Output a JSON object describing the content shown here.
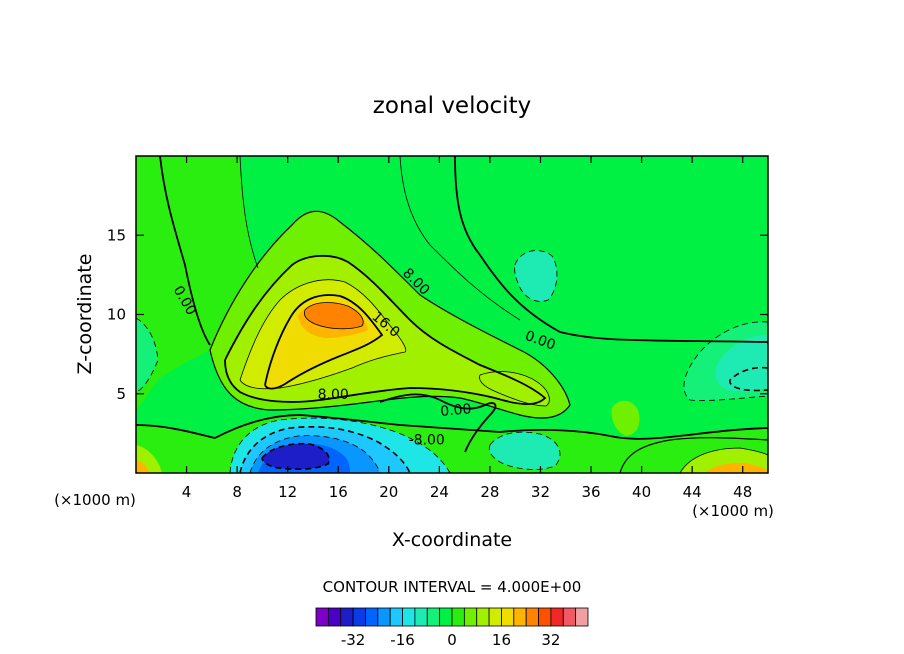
{
  "chart_data": {
    "type": "heatmap",
    "title": "zonal velocity",
    "xlabel": "X-coordinate",
    "ylabel": "Z-coordinate",
    "x_unit_left": "(×1000 m)",
    "x_unit_right": "(×1000 m)",
    "xlim": [
      0,
      50
    ],
    "ylim": [
      0,
      20
    ],
    "x_ticks": [
      4,
      8,
      12,
      16,
      20,
      24,
      28,
      32,
      36,
      40,
      44,
      48
    ],
    "y_ticks": [
      5,
      10,
      15
    ],
    "contour_interval_text": "CONTOUR INTERVAL = 4.000E+00",
    "contour_labels": [
      {
        "text": "0.00",
        "x": 3.9,
        "y": 10.9,
        "angle": 60
      },
      {
        "text": "8.00",
        "x": 22.2,
        "y": 12.1,
        "angle": 45
      },
      {
        "text": "16.0",
        "x": 19.8,
        "y": 9.4,
        "angle": 40
      },
      {
        "text": "0.00",
        "x": 32.0,
        "y": 8.4,
        "angle": 20
      },
      {
        "text": "8.00",
        "x": 15.6,
        "y": 5.0,
        "angle": 0
      },
      {
        "text": "0.00",
        "x": 25.3,
        "y": 4.0,
        "angle": -5
      },
      {
        "text": "-8.00",
        "x": 23.0,
        "y": 2.1,
        "angle": 0
      }
    ],
    "colorbar": {
      "colors": [
        "#7d00c8",
        "#4b00c8",
        "#1e1ec8",
        "#0a3ce6",
        "#0064ff",
        "#0a96ff",
        "#1ec8ff",
        "#1ee6e6",
        "#1eebb4",
        "#14f078",
        "#00f044",
        "#2aee10",
        "#6ef000",
        "#a0f000",
        "#d2ec00",
        "#f0dc00",
        "#ffb400",
        "#ff8200",
        "#ff5000",
        "#f02828",
        "#f05a64",
        "#f0a0a0"
      ],
      "tick_labels": [
        "-32",
        "-16",
        "0",
        "16",
        "32"
      ],
      "tick_values": [
        -32,
        -16,
        0,
        16,
        32
      ]
    }
  }
}
